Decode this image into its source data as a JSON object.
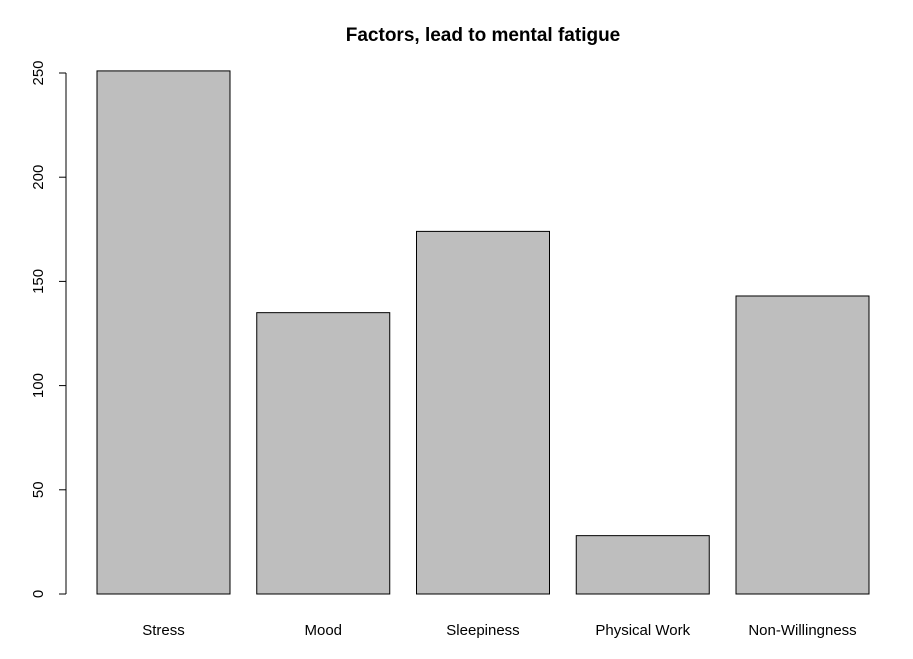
{
  "chart_data": {
    "type": "bar",
    "title": "Factors, lead to mental fatigue",
    "xlabel": "",
    "ylabel": "",
    "categories": [
      "Stress",
      "Mood",
      "Sleepiness",
      "Physical Work",
      "Non-Willingness"
    ],
    "values": [
      251,
      135,
      174,
      28,
      143
    ],
    "ylim": [
      0,
      250
    ],
    "yticks": [
      "0",
      "50",
      "100",
      "150",
      "200",
      "250"
    ],
    "grid": false,
    "legend": "none",
    "bar_fill": "#bebebe",
    "bar_stroke": "#000000"
  }
}
